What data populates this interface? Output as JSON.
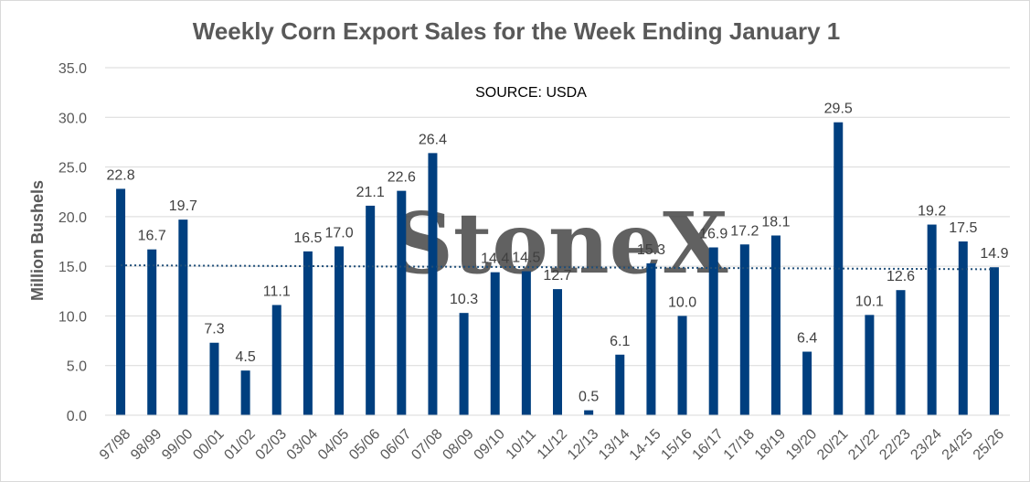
{
  "chart_data": {
    "type": "bar",
    "title": "Weekly Corn Export Sales for the Week Ending January 1",
    "ylabel": "Million Bushels",
    "xlabel": "",
    "source_note": "SOURCE: USDA",
    "watermark": "StoneX",
    "ylim": [
      0,
      35
    ],
    "ytick_values": [
      0,
      5,
      10,
      15,
      20,
      25,
      30,
      35
    ],
    "ytick_labels": [
      "0.0",
      "5.0",
      "10.0",
      "15.0",
      "20.0",
      "25.0",
      "30.0",
      "35.0"
    ],
    "grid": true,
    "legend": "none",
    "bar_color": "#003f7f",
    "trendline": {
      "style": "dotted",
      "color": "#1f4e79",
      "start": 15.1,
      "end": 14.7
    },
    "categories": [
      "97/98",
      "98/99",
      "99/00",
      "00/01",
      "01/02",
      "02/03",
      "03/04",
      "04/05",
      "05/06",
      "06/07",
      "07/08",
      "08/09",
      "09/10",
      "10/11",
      "11/12",
      "12/13",
      "13/14",
      "14-15",
      "15/16",
      "16/17",
      "17/18",
      "18/19",
      "19/20",
      "20/21",
      "21/22",
      "22/23",
      "23/24",
      "24/25",
      "25/26"
    ],
    "values": [
      22.8,
      16.7,
      19.7,
      7.3,
      4.5,
      11.1,
      16.5,
      17.0,
      21.1,
      22.6,
      26.4,
      10.3,
      14.4,
      14.5,
      12.7,
      0.5,
      6.1,
      15.3,
      10.0,
      16.9,
      17.2,
      18.1,
      6.4,
      29.5,
      10.1,
      12.6,
      19.2,
      17.5,
      14.9
    ],
    "value_labels": [
      "22.8",
      "16.7",
      "19.7",
      "7.3",
      "4.5",
      "11.1",
      "16.5",
      "17.0",
      "21.1",
      "22.6",
      "26.4",
      "10.3",
      "14.4",
      "14.5",
      "12.7",
      "0.5",
      "6.1",
      "15.3",
      "10.0",
      "16.9",
      "17.2",
      "18.1",
      "6.4",
      "29.5",
      "10.1",
      "12.6",
      "19.2",
      "17.5",
      "14.9"
    ]
  }
}
